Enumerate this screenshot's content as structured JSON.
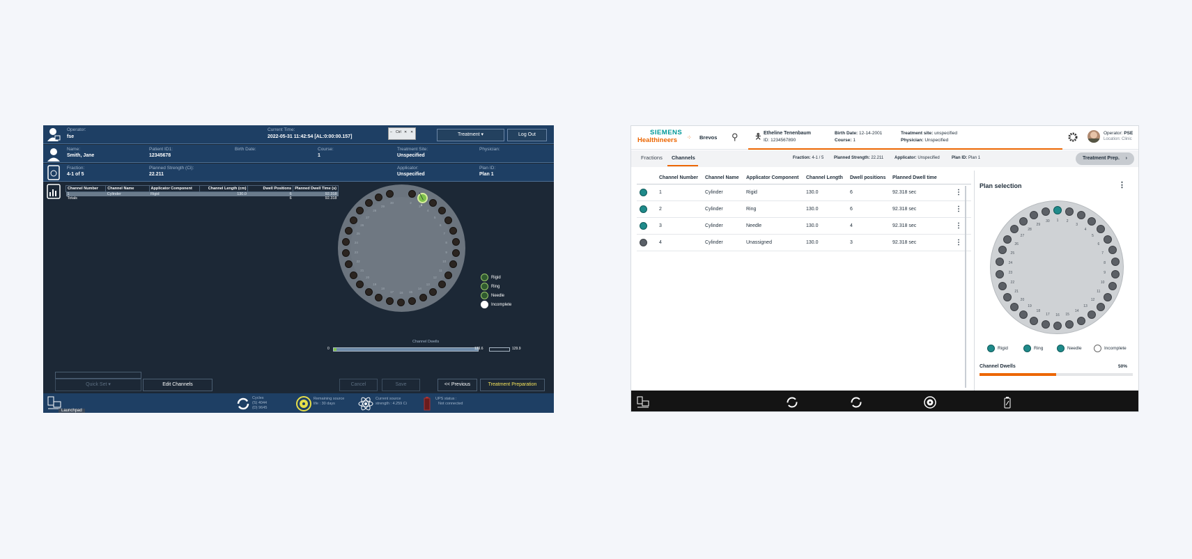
{
  "legacy": {
    "operator_label": "Operator:",
    "operator_value": "fse",
    "time_label": "Current Time:",
    "time_value": "2022-05-31 11:42:54 [AL:0:00:00.157]",
    "win_controls": [
      "–",
      "Ctrl",
      "✕",
      "✕"
    ],
    "treatment_button": "Treatment",
    "logout_button": "Log Out",
    "name_label": "Name:",
    "name_value": "Smith, Jane",
    "patient_label": "Patient ID1:",
    "patient_value": "12345678",
    "birth_label": "Birth Date:",
    "course_label": "Course:",
    "course_value": "1",
    "site_label": "Treatment Site:",
    "site_value": "Unspecified",
    "physician_label": "Physician:",
    "fraction_label": "Fraction:",
    "fraction_value": "4-1 of 5",
    "strength_label": "Planned Strength (Ci):",
    "strength_value": "22.211",
    "applicator_label": "Applicator:",
    "applicator_value": "Unspecified",
    "plan_label": "Plan ID:",
    "plan_value": "Plan 1",
    "table_headers": [
      "Channel Number",
      "Channel Name",
      "Applicator Component",
      "Channel Length (cm)",
      "Dwell Positions",
      "Planned Dwell Time (s)"
    ],
    "table_row": [
      "1",
      "Cylinder",
      "Rigid",
      "130.0",
      "6",
      "92.318"
    ],
    "totals_row": [
      "Totals",
      "",
      "",
      "",
      "6",
      "92.318"
    ],
    "wheel_selected_number": "1",
    "legend": [
      "Rigid",
      "Ring",
      "Needle",
      "Incomplete"
    ],
    "dwells_title": "Channel Dwells",
    "dwells_start": "0",
    "dwells_mid": "129.6",
    "dwells_end": "129.9",
    "quick_set_button": "Quick Set",
    "edit_channels_button": "Edit Channels",
    "cancel_button": "Cancel",
    "save_button": "Save",
    "previous_button": "<< Previous",
    "treatment_prep_button": "Treatment Preparation",
    "cycles_label": "Cycles",
    "cycles_s": "(S) 4044",
    "cycles_d": "(D) 9645",
    "remaining_label": "Remaining source",
    "remaining_value": "life : 30 days",
    "current_source_label": "Current source",
    "current_source_value": "strength : 4.259 Ci",
    "ups_label": "UPS status :",
    "ups_value": "Not connected",
    "bottom_tab": "Launchpad"
  },
  "modern": {
    "brand_top": "SIEMENS",
    "brand_bottom": "Healthineers",
    "product": "Brevos",
    "patient_name": "Etheline Tenenbaum",
    "patient_id": "ID: 1234567890",
    "birth_label": "Birth Date:",
    "birth_value": "12-14-2001",
    "course_label": "Course:",
    "course_value": "1",
    "site_label": "Treatment site:",
    "site_value": "unspecified",
    "physician_label": "Physician:",
    "physician_value": "Unspecified",
    "operator_label": "Operator:",
    "operator_value": "PSE",
    "location_label": "Location:",
    "location_value": "Clinic",
    "tabs": [
      "Fractions",
      "Channels"
    ],
    "fraction_label": "Fraction:",
    "fraction_value": "4-1 / 5",
    "strength_label": "Planned Strength:",
    "strength_value": "22.211",
    "applicator_label": "Applicator:",
    "applicator_value": "Unspecified",
    "plan_label": "Plan ID:",
    "plan_value": "Plan 1",
    "treatment_prep_button": "Treatment Prep.",
    "table_headers": [
      "Channel Number",
      "Channel Name",
      "Applicator Component",
      "Channel Length",
      "Dwell positions",
      "Planned Dwell time"
    ],
    "rows": [
      [
        "1",
        "Cylinder",
        "Rigid",
        "130.0",
        "6",
        "92.318 sec"
      ],
      [
        "2",
        "Cylinder",
        "Ring",
        "130.0",
        "6",
        "92.318 sec"
      ],
      [
        "3",
        "Cylinder",
        "Needle",
        "130.0",
        "4",
        "92.318 sec"
      ],
      [
        "4",
        "Cylinder",
        "Unassigned",
        "130.0",
        "3",
        "92.318 sec"
      ]
    ],
    "plan_title": "Plan selection",
    "legend": [
      "Rigid",
      "Ring",
      "Needle",
      "Incomplete"
    ],
    "dwells_title": "Channel Dwells",
    "dwells_percent": "50%",
    "dwells_fraction": 0.5
  },
  "colors": {
    "legacy_bg": "#1c2836",
    "legacy_bar": "#1e3f64",
    "brand_orange": "#ec6602",
    "teal": "#1f8a8a",
    "siemens_teal": "#009999"
  }
}
